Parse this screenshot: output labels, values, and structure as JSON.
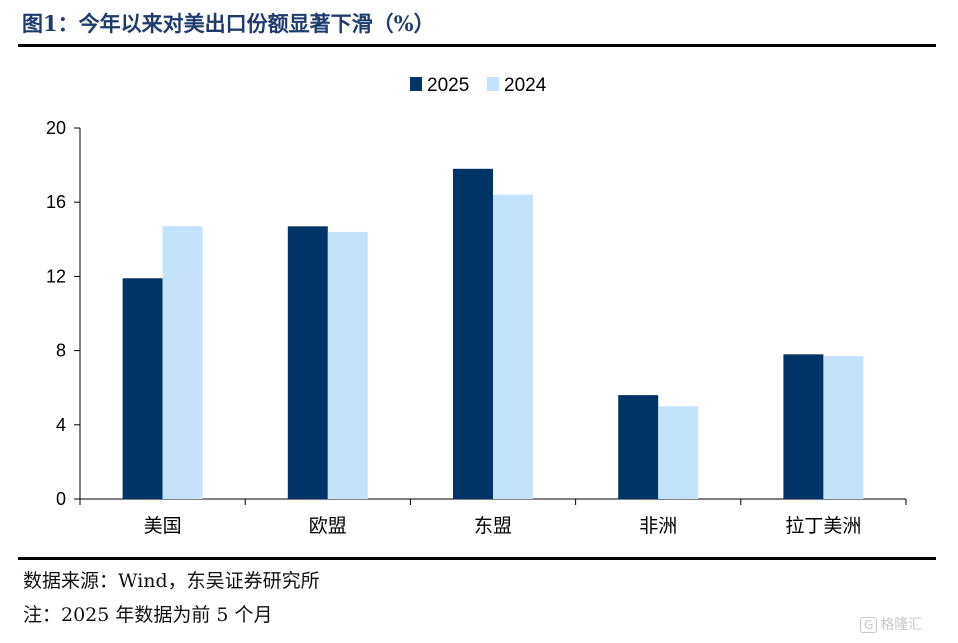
{
  "header": {
    "title": "图1：今年以来对美出口份额显著下滑（%）"
  },
  "footer": {
    "source": "数据来源：Wind，东吴证券研究所",
    "note": "注：2025 年数据为前 5 个月"
  },
  "watermark": {
    "badge": "G",
    "text": "格隆汇"
  },
  "chart_data": {
    "type": "bar",
    "title": "今年以来对美出口份额显著下滑（%）",
    "xlabel": "",
    "ylabel": "",
    "categories": [
      "美国",
      "欧盟",
      "东盟",
      "非洲",
      "拉丁美洲"
    ],
    "series": [
      {
        "name": "2025",
        "color": "#003366",
        "values": [
          11.9,
          14.7,
          17.8,
          5.6,
          7.8
        ]
      },
      {
        "name": "2024",
        "color": "#c4e3fa",
        "values": [
          14.7,
          14.4,
          16.4,
          5.0,
          7.7
        ]
      }
    ],
    "ylim": [
      0,
      20
    ],
    "yticks": [
      "0",
      "4",
      "8",
      "12",
      "16",
      "20"
    ],
    "grid": false,
    "legend": "top-center"
  }
}
